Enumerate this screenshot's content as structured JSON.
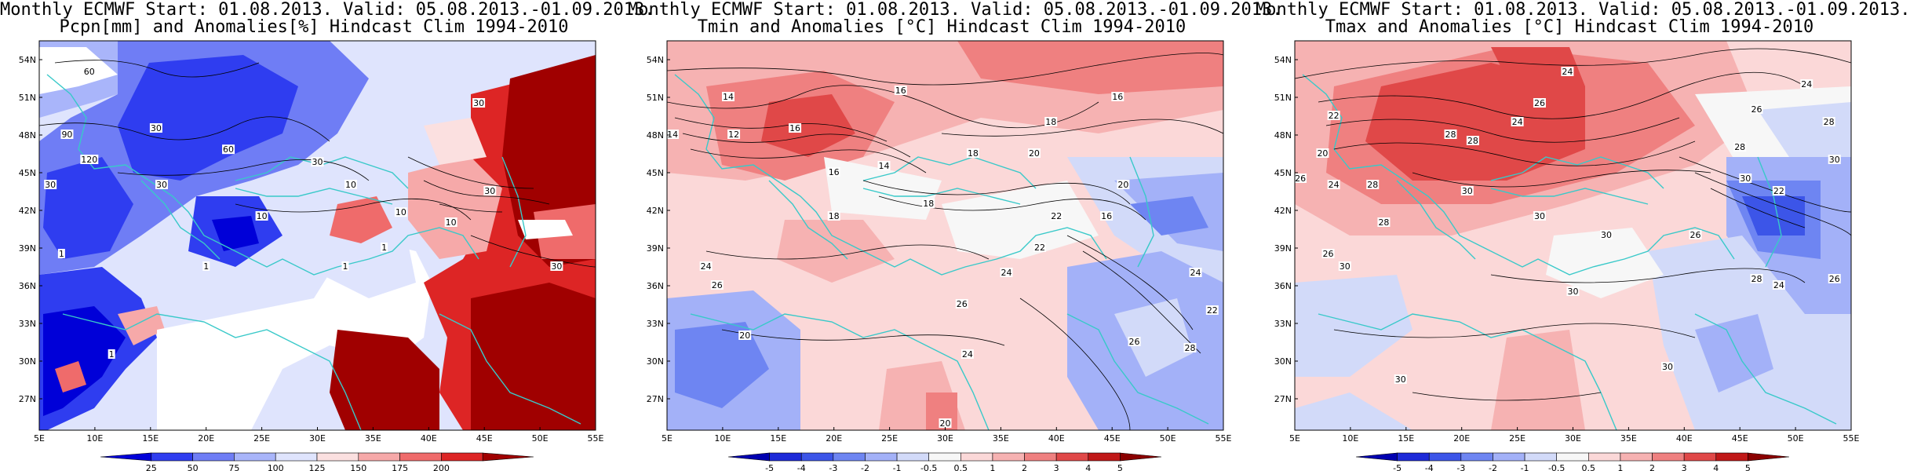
{
  "panels": [
    {
      "id": "pcpn",
      "title_line1": "Monthly ECMWF Start: 01.08.2013. Valid: 05.08.2013.-01.09.2013.",
      "title_line2": "Pcpn[mm] and Anomalies[%] Hindcast Clim 1994-2010",
      "colorbar_labels": [
        "25",
        "50",
        "75",
        "100",
        "125",
        "150",
        "175",
        "200"
      ],
      "colors": [
        "#0000d8",
        "#2f3df0",
        "#6f7df5",
        "#a9b5fa",
        "#dfe4fd",
        "#fbe0e0",
        "#f6a9a9",
        "#ef6b6b",
        "#dd2525",
        "#a00000"
      ],
      "contour_labels": [
        {
          "text": "60",
          "lon": 9.5,
          "lat": 53.0
        },
        {
          "text": "90",
          "lon": 7.5,
          "lat": 48.0
        },
        {
          "text": "120",
          "lon": 9.5,
          "lat": 46.0
        },
        {
          "text": "30",
          "lon": 15.5,
          "lat": 48.5
        },
        {
          "text": "60",
          "lon": 22.0,
          "lat": 46.8
        },
        {
          "text": "30",
          "lon": 16.0,
          "lat": 44.0
        },
        {
          "text": "10",
          "lon": 33.0,
          "lat": 44.0
        },
        {
          "text": "30",
          "lon": 30.0,
          "lat": 45.8
        },
        {
          "text": "10",
          "lon": 37.5,
          "lat": 41.8
        },
        {
          "text": "10",
          "lon": 25.0,
          "lat": 41.5
        },
        {
          "text": "30",
          "lon": 44.5,
          "lat": 50.5
        },
        {
          "text": "30",
          "lon": 45.5,
          "lat": 43.5
        },
        {
          "text": "10",
          "lon": 42.0,
          "lat": 41.0
        },
        {
          "text": "1",
          "lon": 36.0,
          "lat": 39.0
        },
        {
          "text": "1",
          "lon": 7.0,
          "lat": 38.5
        },
        {
          "text": "1",
          "lon": 20.0,
          "lat": 37.5
        },
        {
          "text": "1",
          "lon": 32.5,
          "lat": 37.5
        },
        {
          "text": "1",
          "lon": 11.5,
          "lat": 30.5
        },
        {
          "text": "30",
          "lon": 51.5,
          "lat": 37.5
        },
        {
          "text": "30",
          "lon": 6.0,
          "lat": 44.0
        }
      ]
    },
    {
      "id": "tmin",
      "title_line1": "Monthly ECMWF Start: 01.08.2013. Valid: 05.08.2013.-01.09.2013.",
      "title_line2": "Tmin and Anomalies [°C] Hindcast Clim 1994-2010",
      "colorbar_labels": [
        "-5",
        "-4",
        "-3",
        "-2",
        "-1",
        "-0.5",
        "0.5",
        "1",
        "2",
        "3",
        "4",
        "5"
      ],
      "colors": [
        "#0000b0",
        "#1d2ad8",
        "#3c55e8",
        "#6e85f2",
        "#a3b1f8",
        "#d2daf9",
        "#f7f7f7",
        "#fbd8d8",
        "#f6b2b2",
        "#ef8080",
        "#e04848",
        "#c01818",
        "#8a0000"
      ],
      "contour_labels": [
        {
          "text": "14",
          "lon": 10.5,
          "lat": 51.0
        },
        {
          "text": "16",
          "lon": 26.0,
          "lat": 51.5
        },
        {
          "text": "16",
          "lon": 45.5,
          "lat": 51.0
        },
        {
          "text": "12",
          "lon": 11.0,
          "lat": 48.0
        },
        {
          "text": "14",
          "lon": 5.5,
          "lat": 48.0
        },
        {
          "text": "16",
          "lon": 16.5,
          "lat": 48.5
        },
        {
          "text": "18",
          "lon": 39.5,
          "lat": 49.0
        },
        {
          "text": "14",
          "lon": 24.5,
          "lat": 45.5
        },
        {
          "text": "16",
          "lon": 20.0,
          "lat": 45.0
        },
        {
          "text": "18",
          "lon": 32.5,
          "lat": 46.5
        },
        {
          "text": "20",
          "lon": 38.0,
          "lat": 46.5
        },
        {
          "text": "20",
          "lon": 46.0,
          "lat": 44.0
        },
        {
          "text": "18",
          "lon": 28.5,
          "lat": 42.5
        },
        {
          "text": "18",
          "lon": 20.0,
          "lat": 41.5
        },
        {
          "text": "22",
          "lon": 40.0,
          "lat": 41.5
        },
        {
          "text": "16",
          "lon": 44.5,
          "lat": 41.5
        },
        {
          "text": "24",
          "lon": 8.5,
          "lat": 37.5
        },
        {
          "text": "26",
          "lon": 9.5,
          "lat": 36.0
        },
        {
          "text": "22",
          "lon": 38.5,
          "lat": 39.0
        },
        {
          "text": "24",
          "lon": 35.5,
          "lat": 37.0
        },
        {
          "text": "26",
          "lon": 31.5,
          "lat": 34.5
        },
        {
          "text": "20",
          "lon": 12.0,
          "lat": 32.0
        },
        {
          "text": "24",
          "lon": 32.0,
          "lat": 30.5
        },
        {
          "text": "22",
          "lon": 54.0,
          "lat": 34.0
        },
        {
          "text": "24",
          "lon": 52.5,
          "lat": 37.0
        },
        {
          "text": "26",
          "lon": 47.0,
          "lat": 31.5
        },
        {
          "text": "28",
          "lon": 52.0,
          "lat": 31.0
        },
        {
          "text": "20",
          "lon": 30.0,
          "lat": 25.0
        }
      ]
    },
    {
      "id": "tmax",
      "title_line1": "Monthly ECMWF Start: 01.08.2013. Valid: 05.08.2013.-01.09.2013.",
      "title_line2": "Tmax and Anomalies [°C] Hindcast Clim 1994-2010",
      "colorbar_labels": [
        "-5",
        "-4",
        "-3",
        "-2",
        "-1",
        "-0.5",
        "0.5",
        "1",
        "2",
        "3",
        "4",
        "5"
      ],
      "colors": [
        "#0000b0",
        "#1d2ad8",
        "#3c55e8",
        "#6e85f2",
        "#a3b1f8",
        "#d2daf9",
        "#f7f7f7",
        "#fbd8d8",
        "#f6b2b2",
        "#ef8080",
        "#e04848",
        "#c01818",
        "#8a0000"
      ],
      "contour_labels": [
        {
          "text": "24",
          "lon": 29.5,
          "lat": 53.0
        },
        {
          "text": "26",
          "lon": 46.5,
          "lat": 50.0
        },
        {
          "text": "24",
          "lon": 51.0,
          "lat": 52.0
        },
        {
          "text": "22",
          "lon": 8.5,
          "lat": 49.5
        },
        {
          "text": "24",
          "lon": 25.0,
          "lat": 49.0
        },
        {
          "text": "26",
          "lon": 27.0,
          "lat": 50.5
        },
        {
          "text": "28",
          "lon": 53.0,
          "lat": 49.0
        },
        {
          "text": "28",
          "lon": 19.0,
          "lat": 48.0
        },
        {
          "text": "28",
          "lon": 21.0,
          "lat": 47.5
        },
        {
          "text": "20",
          "lon": 7.5,
          "lat": 46.5
        },
        {
          "text": "28",
          "lon": 45.0,
          "lat": 47.0
        },
        {
          "text": "30",
          "lon": 53.5,
          "lat": 46.0
        },
        {
          "text": "26",
          "lon": 5.5,
          "lat": 44.5
        },
        {
          "text": "24",
          "lon": 8.5,
          "lat": 44.0
        },
        {
          "text": "28",
          "lon": 12.0,
          "lat": 44.0
        },
        {
          "text": "30",
          "lon": 20.5,
          "lat": 43.5
        },
        {
          "text": "30",
          "lon": 45.5,
          "lat": 44.5
        },
        {
          "text": "22",
          "lon": 48.5,
          "lat": 43.5
        },
        {
          "text": "30",
          "lon": 27.0,
          "lat": 41.5
        },
        {
          "text": "28",
          "lon": 13.0,
          "lat": 41.0
        },
        {
          "text": "26",
          "lon": 41.0,
          "lat": 40.0
        },
        {
          "text": "26",
          "lon": 8.0,
          "lat": 38.5
        },
        {
          "text": "30",
          "lon": 9.5,
          "lat": 37.5
        },
        {
          "text": "30",
          "lon": 33.0,
          "lat": 40.0
        },
        {
          "text": "30",
          "lon": 30.0,
          "lat": 35.5
        },
        {
          "text": "28",
          "lon": 46.5,
          "lat": 36.5
        },
        {
          "text": "24",
          "lon": 48.5,
          "lat": 36.0
        },
        {
          "text": "30",
          "lon": 14.5,
          "lat": 28.5
        },
        {
          "text": "30",
          "lon": 38.5,
          "lat": 29.5
        },
        {
          "text": "26",
          "lon": 53.5,
          "lat": 36.5
        }
      ]
    }
  ],
  "axes": {
    "y_ticks": [
      "54N",
      "51N",
      "48N",
      "45N",
      "42N",
      "39N",
      "36N",
      "33N",
      "30N",
      "27N"
    ],
    "x_ticks": [
      "5E",
      "10E",
      "15E",
      "20E",
      "25E",
      "30E",
      "35E",
      "40E",
      "45E",
      "50E",
      "55E"
    ]
  }
}
